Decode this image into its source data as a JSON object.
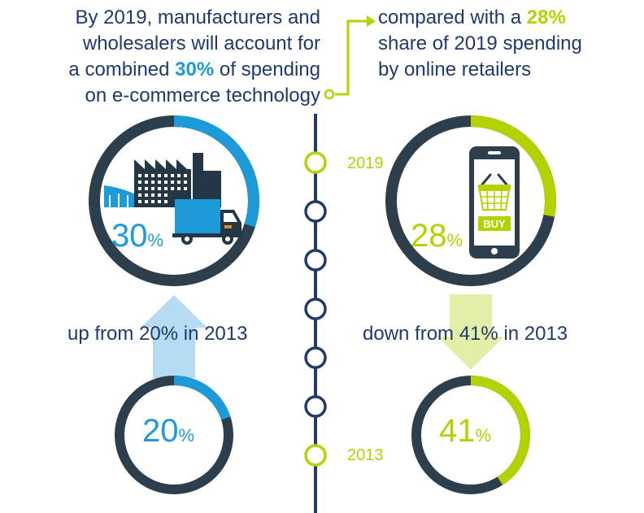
{
  "colors": {
    "navy": "#243746",
    "text_navy": "#1f3a6b",
    "blue": "#1d9bd8",
    "light_blue": "#b5dcf3",
    "green": "#b4d200",
    "light_green": "#e3efa8",
    "ring_gray": "#2d3e4c"
  },
  "headline_left": {
    "line1": "By 2019, manufacturers and",
    "line2": "wholesalers will account for",
    "line3_pre": "a combined ",
    "line3_hl": "30%",
    "line3_post": " of spending",
    "line4": "on e-commerce technology"
  },
  "headline_right": {
    "line1_pre": "compared with a ",
    "line1_hl": "28%",
    "line2": "share of 2019 spending",
    "line3": "by online retailers"
  },
  "timeline": {
    "year_top": "2019",
    "year_bottom": "2013",
    "node_count": 7
  },
  "captions": {
    "left": "up from 20% in 2013",
    "right": "down from 41% in 2013"
  },
  "percent_sign": "%",
  "buy_label": "BUY",
  "chart_data": [
    {
      "type": "pie",
      "group": "manufacturers and wholesalers",
      "year": "2019",
      "value": 30,
      "unit": "%",
      "color": "#1d9bd8",
      "icon": "factory-truck-icon"
    },
    {
      "type": "pie",
      "group": "manufacturers and wholesalers",
      "year": "2013",
      "value": 20,
      "unit": "%",
      "color": "#1d9bd8"
    },
    {
      "type": "pie",
      "group": "online retailers",
      "year": "2019",
      "value": 28,
      "unit": "%",
      "color": "#b4d200",
      "icon": "phone-shopping-basket-icon"
    },
    {
      "type": "pie",
      "group": "online retailers",
      "year": "2013",
      "value": 41,
      "unit": "%",
      "color": "#b4d200"
    }
  ]
}
